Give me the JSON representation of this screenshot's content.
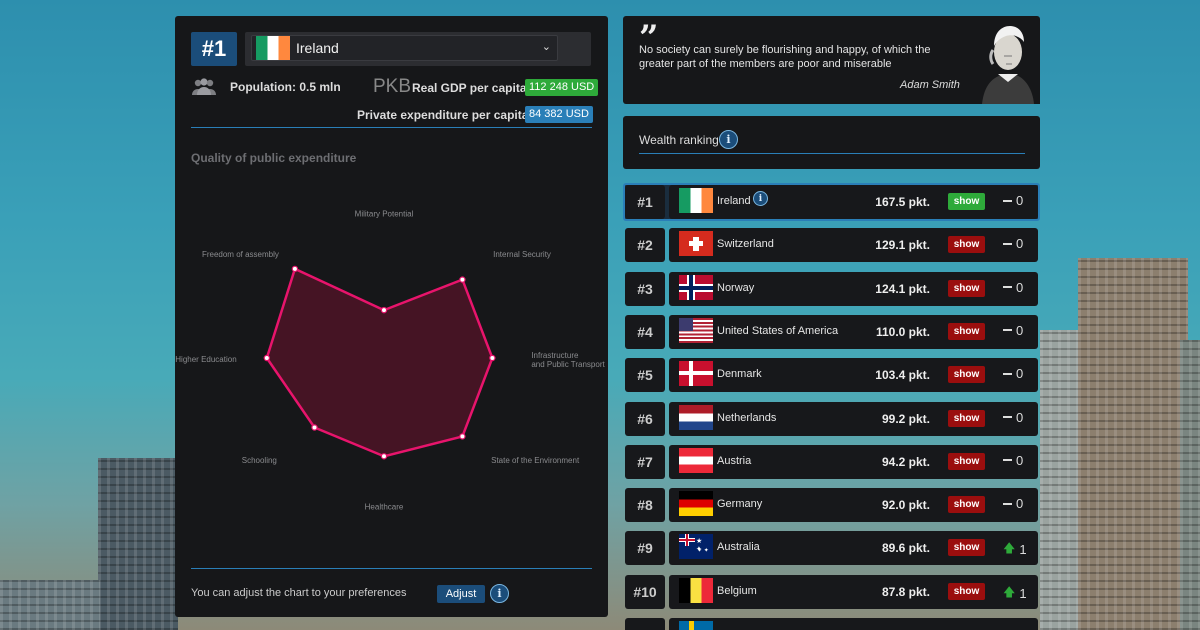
{
  "country_panel": {
    "rank": "#1",
    "selected_country": "Ireland",
    "population": "Population: 0.5 mln",
    "pkb": "PKB",
    "gdp_label": "Real GDP per capita",
    "gdp_value": "112 248 USD",
    "private_label": "Private expenditure per capita",
    "private_value": "84 382 USD",
    "quality_title": "Quality of public expenditure",
    "adjust_text": "You can adjust the chart to your preferences",
    "adjust_button": "Adjust",
    "info_glyph": "i"
  },
  "chart_data": {
    "type": "radar",
    "axes": [
      "Military Potential",
      "Internal Security",
      "Infrastructure and Public Transport",
      "State of the Environment",
      "Healthcare",
      "Schooling",
      "Higher Education",
      "Freedom of assembly"
    ],
    "axis_label_lines": [
      [
        "Military Potential"
      ],
      [
        "Internal Security"
      ],
      [
        "Infrastructure",
        "and Public Transport"
      ],
      [
        "State of the Environment"
      ],
      [
        "Healthcare"
      ],
      [
        "Schooling"
      ],
      [
        "Higher Education"
      ],
      [
        "Freedom of assembly"
      ]
    ],
    "values": [
      0.38,
      0.88,
      0.86,
      0.88,
      0.78,
      0.78,
      0.93,
      1.0
    ],
    "max": 1.0,
    "color": "#e8146c",
    "fill": "#4a1426"
  },
  "quote": {
    "mark": "”",
    "text": "No society can surely be flourishing and happy, of which the greater part of the members are poor and miserable",
    "author": "Adam Smith"
  },
  "wealth": {
    "title": "Wealth ranking"
  },
  "ranking": [
    {
      "rank": "#1",
      "country": "Ireland",
      "flag": "ie",
      "points": "167.5 pkt.",
      "show": "show",
      "change": "0",
      "trend": "same",
      "active": true
    },
    {
      "rank": "#2",
      "country": "Switzerland",
      "flag": "ch",
      "points": "129.1 pkt.",
      "show": "show",
      "change": "0",
      "trend": "same"
    },
    {
      "rank": "#3",
      "country": "Norway",
      "flag": "no",
      "points": "124.1 pkt.",
      "show": "show",
      "change": "0",
      "trend": "same"
    },
    {
      "rank": "#4",
      "country": "United States of America",
      "flag": "us",
      "points": "110.0 pkt.",
      "show": "show",
      "change": "0",
      "trend": "same"
    },
    {
      "rank": "#5",
      "country": "Denmark",
      "flag": "dk",
      "points": "103.4 pkt.",
      "show": "show",
      "change": "0",
      "trend": "same"
    },
    {
      "rank": "#6",
      "country": "Netherlands",
      "flag": "nl",
      "points": "99.2 pkt.",
      "show": "show",
      "change": "0",
      "trend": "same"
    },
    {
      "rank": "#7",
      "country": "Austria",
      "flag": "at",
      "points": "94.2 pkt.",
      "show": "show",
      "change": "0",
      "trend": "same"
    },
    {
      "rank": "#8",
      "country": "Germany",
      "flag": "de",
      "points": "92.0 pkt.",
      "show": "show",
      "change": "0",
      "trend": "same"
    },
    {
      "rank": "#9",
      "country": "Australia",
      "flag": "au",
      "points": "89.6 pkt.",
      "show": "show",
      "change": "1",
      "trend": "up"
    },
    {
      "rank": "#10",
      "country": "Belgium",
      "flag": "be",
      "points": "87.8 pkt.",
      "show": "show",
      "change": "1",
      "trend": "up"
    },
    {
      "rank": "",
      "country": "",
      "flag": "se",
      "points": "",
      "show": "",
      "change": "",
      "trend": "partial"
    }
  ],
  "colors": {
    "accent_blue": "#2a7fb8",
    "badge_blue": "#1b4d7a",
    "green": "#2eaa3a",
    "show_red": "#9b0e0e",
    "panel": "#161719"
  }
}
